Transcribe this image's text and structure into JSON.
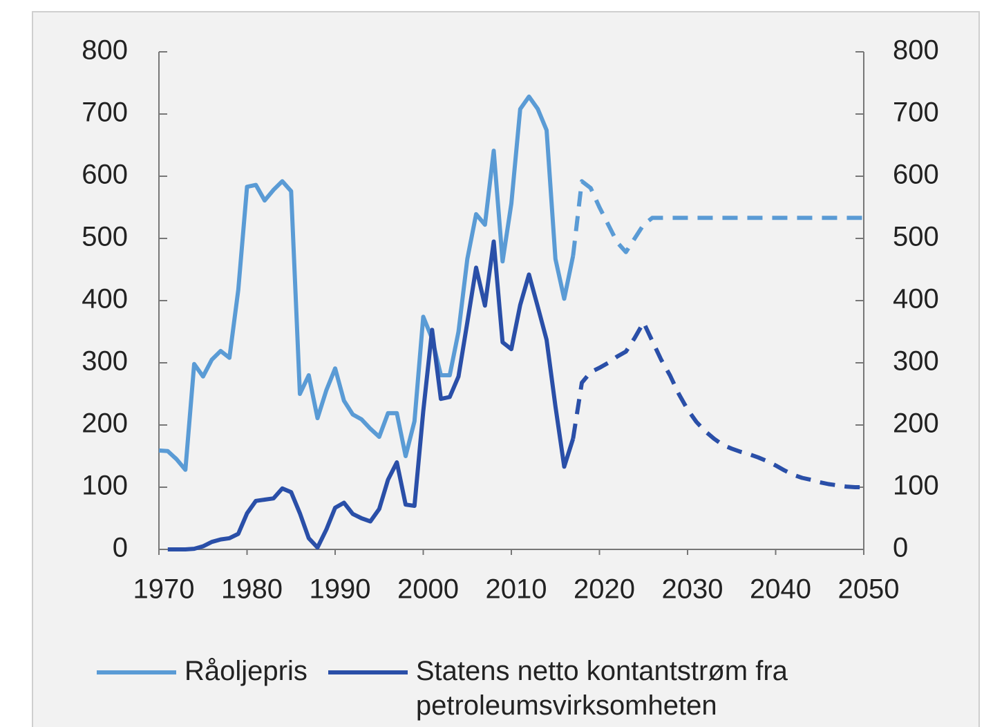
{
  "chart_data": {
    "type": "line",
    "x": [
      1970,
      1971,
      1972,
      1973,
      1974,
      1975,
      1976,
      1977,
      1978,
      1979,
      1980,
      1981,
      1982,
      1983,
      1984,
      1985,
      1986,
      1987,
      1988,
      1989,
      1990,
      1991,
      1992,
      1993,
      1994,
      1995,
      1996,
      1997,
      1998,
      1999,
      2000,
      2001,
      2002,
      2003,
      2004,
      2005,
      2006,
      2007,
      2008,
      2009,
      2010,
      2011,
      2012,
      2013,
      2014,
      2015,
      2016,
      2017,
      2018,
      2019,
      2020,
      2021,
      2022,
      2023,
      2024,
      2025,
      2026,
      2027,
      2028,
      2029,
      2030,
      2031,
      2032,
      2033,
      2034,
      2035,
      2036,
      2037,
      2038,
      2039,
      2040,
      2041,
      2042,
      2043,
      2044,
      2045,
      2046,
      2047,
      2048,
      2049,
      2050
    ],
    "series": [
      {
        "name": "Råoljepris",
        "color": "#5a9bd5",
        "values": [
          159,
          158,
          145,
          128,
          298,
          278,
          305,
          319,
          308,
          417,
          583,
          586,
          561,
          578,
          592,
          576,
          250,
          280,
          211,
          256,
          291,
          239,
          217,
          209,
          194,
          181,
          219,
          219,
          150,
          206,
          374,
          339,
          280,
          280,
          350,
          467,
          539,
          522,
          641,
          463,
          556,
          708,
          728,
          708,
          674,
          467,
          403,
          472,
          592,
          581,
          550,
          522,
          494,
          478,
          500,
          522,
          533,
          533,
          533,
          533,
          533,
          533,
          533,
          533,
          533,
          533,
          533,
          533,
          533,
          533,
          533,
          533,
          533,
          533,
          533,
          533,
          533,
          533,
          533,
          533,
          533
        ]
      },
      {
        "name": "Statens netto kontantstrøm fra petroleumsvirksomheten",
        "color": "#2a4fa8",
        "axis": "y2",
        "values": [
          null,
          0,
          0,
          0,
          1,
          5,
          12,
          16,
          18,
          25,
          58,
          78,
          80,
          82,
          98,
          92,
          58,
          18,
          3,
          32,
          67,
          75,
          57,
          50,
          45,
          65,
          112,
          140,
          72,
          70,
          222,
          353,
          242,
          245,
          278,
          365,
          453,
          392,
          495,
          333,
          322,
          393,
          442,
          390,
          337,
          230,
          133,
          178,
          268,
          285,
          292,
          300,
          310,
          318,
          340,
          365,
          335,
          305,
          280,
          250,
          225,
          205,
          190,
          178,
          168,
          162,
          157,
          153,
          148,
          142,
          135,
          127,
          120,
          115,
          112,
          108,
          105,
          103,
          101,
          100,
          100
        ]
      }
    ],
    "dashed_from": 2017,
    "xlim": [
      1970,
      2050
    ],
    "xticks": [
      1970,
      1980,
      1990,
      2000,
      2010,
      2020,
      2030,
      2040,
      2050
    ],
    "ylim": [
      0,
      800
    ],
    "yticks": [
      0,
      100,
      200,
      300,
      400,
      500,
      600,
      700,
      800
    ],
    "y2lim": [
      0,
      800
    ],
    "y2ticks": [
      0,
      100,
      200,
      300,
      400,
      500,
      600,
      700,
      800
    ]
  }
}
